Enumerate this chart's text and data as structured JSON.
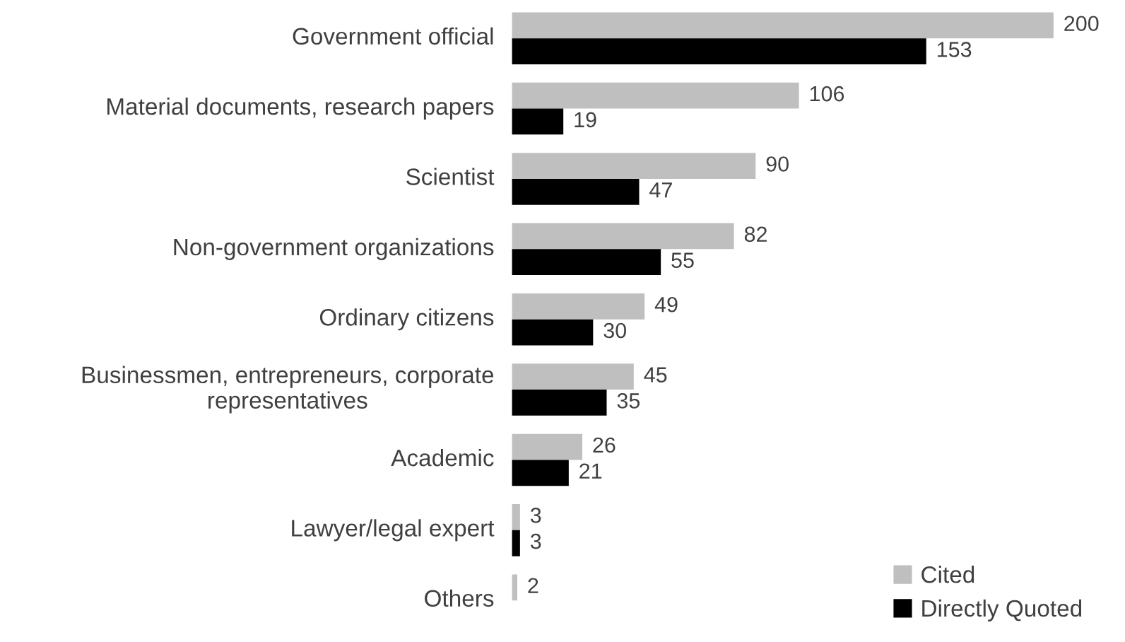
{
  "chart_data": {
    "type": "bar",
    "orientation": "horizontal",
    "categories": [
      "Government official",
      "Material documents, research papers",
      "Scientist",
      "Non-government organizations",
      "Ordinary citizens",
      "Businessmen, entrepreneurs, corporate representatives",
      "Academic",
      "Lawyer/legal expert",
      "Others"
    ],
    "series": [
      {
        "name": "Cited",
        "color": "#bfbfbf",
        "values": [
          200,
          106,
          90,
          82,
          49,
          45,
          26,
          3,
          2
        ]
      },
      {
        "name": "Directly Quoted",
        "color": "#000000",
        "values": [
          153,
          19,
          47,
          55,
          30,
          35,
          21,
          3,
          null
        ]
      }
    ],
    "data_labels": true,
    "legend": "bottom right",
    "grid": false
  }
}
